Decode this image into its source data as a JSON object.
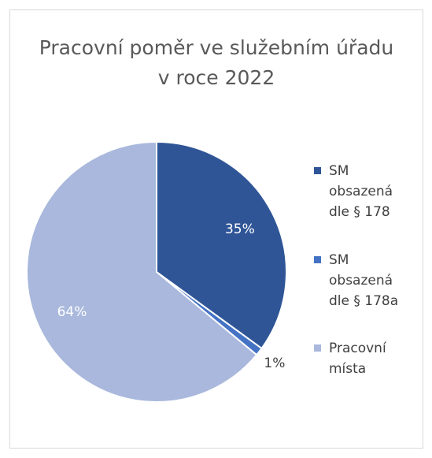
{
  "chart_data": {
    "type": "pie",
    "title": "Pracovní poměr ve služebním úřadu v roce 2022",
    "categories": [
      "SM obsazená dle § 178",
      "SM obsazená dle § 178a",
      "Pracovní místa"
    ],
    "values": [
      35,
      1,
      64
    ],
    "value_labels": [
      "35%",
      "1%",
      "64%"
    ],
    "colors": [
      "#2f5597",
      "#4472c4",
      "#a9b8dc"
    ],
    "legend": "right"
  }
}
